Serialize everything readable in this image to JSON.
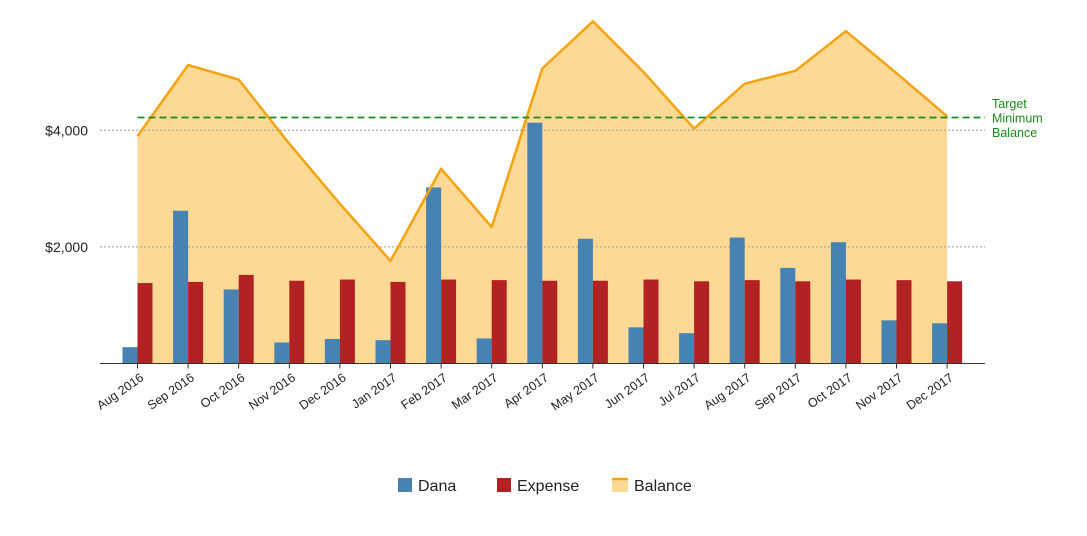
{
  "chart_data": {
    "type": "bar",
    "categories": [
      "Aug 2016",
      "Sep 2016",
      "Oct 2016",
      "Nov 2016",
      "Dec 2016",
      "Jan 2017",
      "Feb 2017",
      "Mar 2017",
      "Apr 2017",
      "May 2017",
      "Jun 2017",
      "Jul 2017",
      "Aug 2017",
      "Sep 2017",
      "Oct 2017",
      "Nov 2017",
      "Dec 2017"
    ],
    "series": [
      {
        "name": "Dana",
        "type": "bar",
        "color": "#4682b4",
        "values": [
          280,
          2620,
          1270,
          360,
          420,
          400,
          3020,
          430,
          4130,
          2140,
          620,
          520,
          2160,
          1640,
          2080,
          740,
          690
        ]
      },
      {
        "name": "Expense",
        "type": "bar",
        "color": "#b22222",
        "values": [
          1380,
          1400,
          1520,
          1420,
          1440,
          1400,
          1440,
          1430,
          1420,
          1420,
          1440,
          1410,
          1430,
          1410,
          1440,
          1430,
          1410
        ]
      },
      {
        "name": "Balance",
        "type": "area",
        "color": "#f5a30f",
        "fill": "#fdd995",
        "values": [
          3900,
          5120,
          4870,
          3770,
          2740,
          1760,
          3340,
          2340,
          5060,
          5870,
          5000,
          4030,
          4800,
          5020,
          5700,
          4980,
          4240
        ]
      }
    ],
    "target": {
      "label_lines": [
        "Target",
        "Minimum",
        "Balance"
      ],
      "value": 4220,
      "color": "#1a8a1a"
    },
    "yticks": [
      {
        "value": 2000,
        "label": "$2,000"
      },
      {
        "value": 4000,
        "label": "$4,000"
      }
    ],
    "ylim": [
      0,
      6400
    ],
    "grid": "horizontal dotted",
    "legend_position": "bottom"
  }
}
